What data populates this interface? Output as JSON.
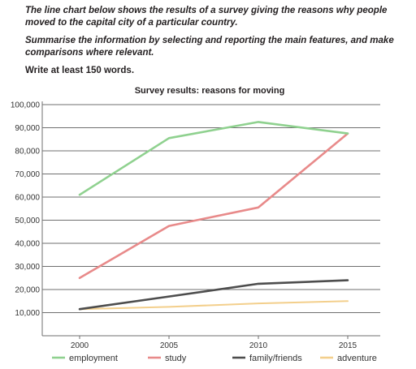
{
  "prompt": {
    "line1": "The line chart below shows the results of a survey giving the reasons why people moved to the capital city of a particular country.",
    "line2": "Summarise the information by selecting and reporting the main features, and make comparisons where relevant.",
    "line3": "Write at least 150 words."
  },
  "chart_data": {
    "type": "line",
    "title": "Survey results: reasons for moving",
    "x": [
      2000,
      2005,
      2010,
      2015
    ],
    "x_tick_labels": [
      "2000",
      "2005",
      "2010",
      "2015"
    ],
    "y_ticks": [
      10000,
      20000,
      30000,
      40000,
      50000,
      60000,
      70000,
      80000,
      90000,
      100000
    ],
    "y_tick_labels": [
      "10,000",
      "20,000",
      "30,000",
      "40,000",
      "50,000",
      "60,000",
      "70,000",
      "80,000",
      "90,000",
      "100,000"
    ],
    "ylim": [
      0,
      100000
    ],
    "grid": true,
    "legend": "bottom",
    "series": [
      {
        "name": "employment",
        "color": "#8fd18f",
        "values": [
          61000,
          85500,
          92500,
          87500
        ]
      },
      {
        "name": "study",
        "color": "#e88a8a",
        "values": [
          25000,
          47500,
          55500,
          87500
        ]
      },
      {
        "name": "family/friends",
        "color": "#4d4d4d",
        "values": [
          11500,
          17000,
          22500,
          24000
        ]
      },
      {
        "name": "adventure",
        "color": "#f3cf8c",
        "values": [
          11500,
          12500,
          14000,
          15000
        ]
      }
    ]
  }
}
